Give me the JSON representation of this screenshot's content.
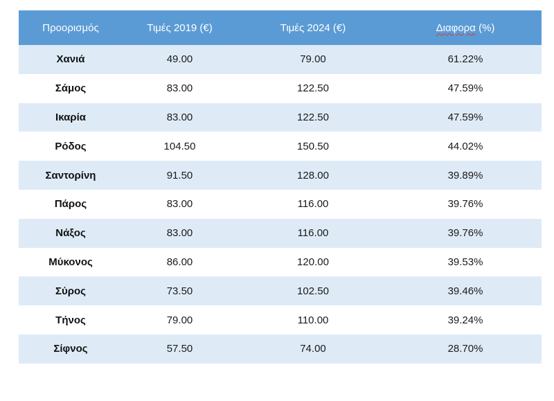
{
  "table": {
    "headers": [
      "Προορισμός",
      "Τιμές 2019 (€)",
      "Τιμές 2024 (€)",
      "Διαφορά (%)"
    ],
    "header_diff_word": "Διαφορα",
    "header_diff_suffix": " (%)",
    "rows": [
      [
        "Χανιά",
        "49.00",
        "79.00",
        "61.22%"
      ],
      [
        "Σάμος",
        "83.00",
        "122.50",
        "47.59%"
      ],
      [
        "Ικαρία",
        "83.00",
        "122.50",
        "47.59%"
      ],
      [
        "Ρόδος",
        "104.50",
        "150.50",
        "44.02%"
      ],
      [
        "Σαντορίνη",
        "91.50",
        "128.00",
        "39.89%"
      ],
      [
        "Πάρος",
        "83.00",
        "116.00",
        "39.76%"
      ],
      [
        "Νάξος",
        "83.00",
        "116.00",
        "39.76%"
      ],
      [
        "Μύκονος",
        "86.00",
        "120.00",
        "39.53%"
      ],
      [
        "Σύρος",
        "73.50",
        "102.50",
        "39.46%"
      ],
      [
        "Τήνος",
        "79.00",
        "110.00",
        "39.24%"
      ],
      [
        "Σίφνος",
        "57.50",
        "74.00",
        "28.70%"
      ]
    ],
    "colors": {
      "header_bg": "#5b9bd5",
      "header_text": "#ffffff",
      "band_bg": "#deebf7",
      "plain_bg": "#ffffff"
    }
  }
}
